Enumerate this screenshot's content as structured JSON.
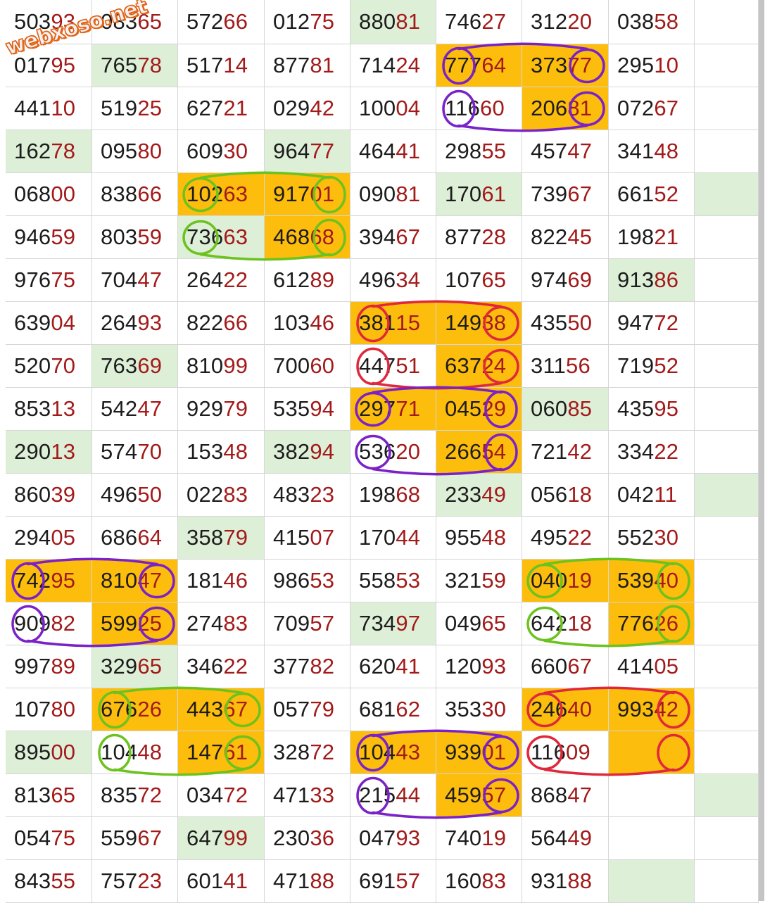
{
  "watermark": "webxoso.net",
  "colors": {
    "orange_highlight": "#fdbd0c",
    "green_fill": "#deefd8",
    "red_digits": "#a31a1a",
    "black_digits": "#1c1c1c",
    "purple_ink": "#7a22c8",
    "green_ink": "#6cc21e",
    "red_ink": "#e0283c"
  },
  "table": {
    "rows": [
      [
        "50393",
        "08365",
        "57266",
        "01275",
        "88081",
        "74627",
        "31220",
        "03858",
        ""
      ],
      [
        "01795",
        "76578",
        "51714",
        "87781",
        "71424",
        "77764",
        "37377",
        "29510",
        ""
      ],
      [
        "44110",
        "51925",
        "62721",
        "02942",
        "10004",
        "11660",
        "20681",
        "07267",
        ""
      ],
      [
        "16278",
        "09580",
        "60930",
        "96477",
        "46441",
        "29855",
        "45747",
        "34148",
        ""
      ],
      [
        "06800",
        "83866",
        "10263",
        "91701",
        "09081",
        "17061",
        "73967",
        "66152",
        ""
      ],
      [
        "94659",
        "80359",
        "73663",
        "46868",
        "39467",
        "87728",
        "82245",
        "19821",
        ""
      ],
      [
        "97675",
        "70447",
        "26422",
        "61289",
        "49634",
        "10765",
        "97469",
        "91386",
        ""
      ],
      [
        "63904",
        "26493",
        "82266",
        "10346",
        "38115",
        "14938",
        "43550",
        "94772",
        ""
      ],
      [
        "52070",
        "76369",
        "81099",
        "70060",
        "44751",
        "63724",
        "31156",
        "71952",
        ""
      ],
      [
        "85313",
        "54247",
        "92979",
        "53594",
        "29771",
        "04529",
        "06085",
        "43595",
        ""
      ],
      [
        "29013",
        "57470",
        "15348",
        "38294",
        "53620",
        "26654",
        "72142",
        "33422",
        ""
      ],
      [
        "86039",
        "49650",
        "02283",
        "48323",
        "19868",
        "23349",
        "05618",
        "04211",
        ""
      ],
      [
        "29405",
        "68664",
        "35879",
        "41507",
        "17044",
        "95548",
        "49522",
        "55230",
        ""
      ],
      [
        "74295",
        "81047",
        "18146",
        "98653",
        "55853",
        "32159",
        "04019",
        "53940",
        ""
      ],
      [
        "90982",
        "59925",
        "27483",
        "70957",
        "73497",
        "04965",
        "64218",
        "77626",
        ""
      ],
      [
        "99789",
        "32965",
        "34622",
        "37782",
        "62041",
        "12093",
        "66067",
        "41405",
        ""
      ],
      [
        "10780",
        "67626",
        "44367",
        "05779",
        "68162",
        "35330",
        "24640",
        "99342",
        ""
      ],
      [
        "89500",
        "10448",
        "14761",
        "32872",
        "10443",
        "93901",
        "11609",
        "",
        ""
      ],
      [
        "81365",
        "83572",
        "03472",
        "47133",
        "21544",
        "45957",
        "86847",
        "",
        ""
      ],
      [
        "05475",
        "55967",
        "64799",
        "23036",
        "04793",
        "74019",
        "56449",
        "",
        ""
      ],
      [
        "84355",
        "75723",
        "60141",
        "47188",
        "69157",
        "16083",
        "93188",
        "",
        ""
      ]
    ],
    "fills": [
      [
        "",
        "",
        "",
        "",
        "g",
        "",
        "",
        "",
        ""
      ],
      [
        "",
        "g",
        "",
        "",
        "",
        "o",
        "o",
        "",
        ""
      ],
      [
        "",
        "",
        "",
        "",
        "",
        "",
        "o",
        "",
        ""
      ],
      [
        "g",
        "",
        "",
        "g",
        "",
        "",
        "",
        "",
        ""
      ],
      [
        "",
        "",
        "o",
        "o",
        "",
        "g",
        "",
        "",
        "g"
      ],
      [
        "",
        "",
        "g",
        "o",
        "",
        "",
        "",
        "",
        ""
      ],
      [
        "",
        "",
        "",
        "",
        "",
        "",
        "",
        "g",
        ""
      ],
      [
        "",
        "",
        "",
        "",
        "o",
        "o",
        "",
        "",
        ""
      ],
      [
        "",
        "g",
        "",
        "",
        "",
        "o",
        "",
        "",
        ""
      ],
      [
        "",
        "",
        "",
        "",
        "o",
        "o",
        "g",
        "",
        ""
      ],
      [
        "g",
        "",
        "",
        "g",
        "",
        "o",
        "",
        "",
        ""
      ],
      [
        "",
        "",
        "",
        "",
        "",
        "g",
        "",
        "",
        "g"
      ],
      [
        "",
        "",
        "g",
        "",
        "",
        "",
        "",
        "",
        ""
      ],
      [
        "o",
        "o",
        "",
        "",
        "",
        "",
        "o",
        "o",
        ""
      ],
      [
        "",
        "o",
        "",
        "",
        "g",
        "",
        "",
        "o",
        ""
      ],
      [
        "",
        "g",
        "",
        "",
        "",
        "",
        "",
        "",
        ""
      ],
      [
        "",
        "o",
        "o",
        "",
        "",
        "",
        "o",
        "o",
        ""
      ],
      [
        "g",
        "",
        "o",
        "",
        "o",
        "o",
        "",
        "o",
        ""
      ],
      [
        "",
        "",
        "",
        "",
        "",
        "o",
        "",
        "",
        "g"
      ],
      [
        "",
        "",
        "g",
        "",
        "",
        "",
        "",
        "",
        ""
      ],
      [
        "",
        "",
        "",
        "",
        "",
        "",
        "",
        "g",
        ""
      ]
    ]
  },
  "annotations": [
    {
      "color": "purple",
      "ellipses": [
        [
          5,
          1,
          "head"
        ],
        [
          6,
          1,
          "tail"
        ],
        [
          5,
          2,
          "head"
        ],
        [
          6,
          2,
          "tail"
        ]
      ]
    },
    {
      "color": "green",
      "ellipses": [
        [
          2,
          4,
          "head"
        ],
        [
          3,
          4,
          "tail"
        ],
        [
          2,
          5,
          "head"
        ],
        [
          3,
          5,
          "tail"
        ]
      ]
    },
    {
      "color": "red",
      "ellipses": [
        [
          4,
          7,
          "head"
        ],
        [
          5,
          7,
          "tail"
        ],
        [
          4,
          8,
          "head"
        ],
        [
          5,
          8,
          "tail"
        ]
      ]
    },
    {
      "color": "purple",
      "ellipses": [
        [
          4,
          9,
          "head"
        ],
        [
          5,
          9,
          "tail"
        ],
        [
          4,
          10,
          "head"
        ],
        [
          5,
          10,
          "tail"
        ]
      ]
    },
    {
      "color": "purple",
      "ellipses": [
        [
          0,
          13,
          "head"
        ],
        [
          1,
          13,
          "tail"
        ],
        [
          0,
          14,
          "head"
        ],
        [
          1,
          14,
          "tail"
        ]
      ]
    },
    {
      "color": "green",
      "ellipses": [
        [
          6,
          13,
          "head"
        ],
        [
          7,
          13,
          "tail"
        ],
        [
          6,
          14,
          "head"
        ],
        [
          7,
          14,
          "tail"
        ]
      ]
    },
    {
      "color": "green",
      "ellipses": [
        [
          1,
          16,
          "head"
        ],
        [
          2,
          16,
          "tail"
        ],
        [
          1,
          17,
          "head"
        ],
        [
          2,
          17,
          "tail"
        ]
      ]
    },
    {
      "color": "red",
      "ellipses": [
        [
          6,
          16,
          "head"
        ],
        [
          7,
          16,
          "tail"
        ],
        [
          6,
          17,
          "head"
        ],
        [
          7,
          17,
          "tail"
        ]
      ]
    },
    {
      "color": "purple",
      "ellipses": [
        [
          4,
          17,
          "head"
        ],
        [
          5,
          17,
          "tail"
        ],
        [
          4,
          18,
          "head"
        ],
        [
          5,
          18,
          "tail"
        ]
      ]
    }
  ]
}
